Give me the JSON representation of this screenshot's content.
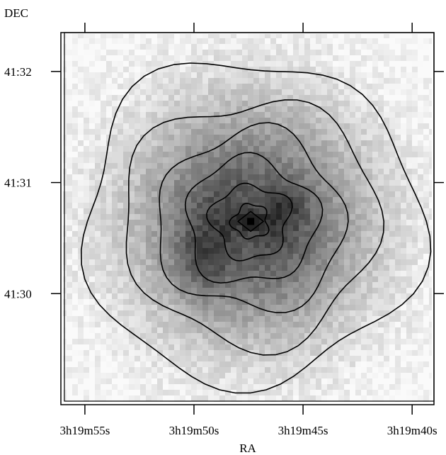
{
  "chart_data": {
    "type": "heatmap",
    "title": "",
    "xlabel": "RA",
    "ylabel": "DEC",
    "x_ticks": [
      {
        "label": "3h19m55s",
        "ra_sec": 55
      },
      {
        "label": "3h19m50s",
        "ra_sec": 50
      },
      {
        "label": "3h19m45s",
        "ra_sec": 45
      },
      {
        "label": "3h19m40s",
        "ra_sec": 40
      }
    ],
    "y_ticks": [
      {
        "label": "41:32",
        "dec_arcmin": 32
      },
      {
        "label": "41:31",
        "dec_arcmin": 31
      },
      {
        "label": "41:30",
        "dec_arcmin": 30
      }
    ],
    "xlim_ra_sec": [
      56.1,
      39.0
    ],
    "ylim_dec_arcmin": [
      29.0,
      32.35
    ],
    "peak": {
      "ra_sec": 47.4,
      "dec_arcmin": 30.65
    },
    "colors": {
      "background": "#ffffff",
      "contour": "#000000",
      "map": "grayscale"
    },
    "grid": false
  }
}
